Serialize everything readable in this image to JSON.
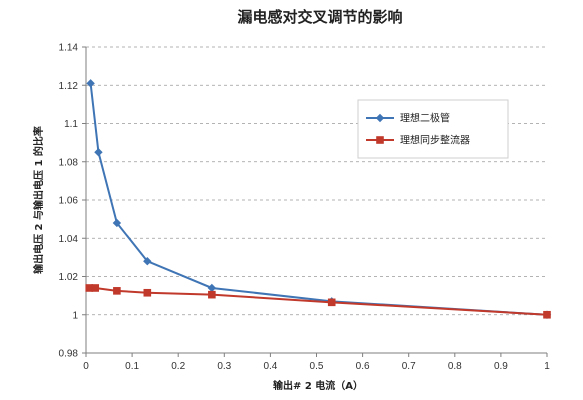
{
  "chart_data": {
    "type": "line",
    "title": "漏电感对交叉调节的影响",
    "xlabel": "输出# 2 电流（A）",
    "ylabel": "输出电压 2 与输出电压 1 的比率",
    "xlim": [
      0,
      1
    ],
    "ylim": [
      0.98,
      1.14
    ],
    "x_ticks": [
      "0",
      "0.1",
      "0.2",
      "0.3",
      "0.4",
      "0.5",
      "0.6",
      "0.7",
      "0.8",
      "0.9",
      "1"
    ],
    "y_ticks": [
      "0.98",
      "1",
      "1.02",
      "1.04",
      "1.06",
      "1.08",
      "1.1",
      "1.12",
      "1.14"
    ],
    "grid": "horizontal",
    "legend_position": "right",
    "series": [
      {
        "name": "理想二极管",
        "color": "#3f75b5",
        "marker": "diamond",
        "x": [
          0.01,
          0.027,
          0.067,
          0.133,
          0.273,
          0.533,
          1.0
        ],
        "y": [
          1.121,
          1.085,
          1.048,
          1.028,
          1.014,
          1.007,
          1.0
        ]
      },
      {
        "name": "理想同步整流器",
        "color": "#c0392b",
        "marker": "square",
        "x": [
          0.007,
          0.02,
          0.067,
          0.133,
          0.273,
          0.533,
          1.0
        ],
        "y": [
          1.014,
          1.014,
          1.0125,
          1.0115,
          1.0105,
          1.0065,
          1.0
        ]
      }
    ]
  }
}
